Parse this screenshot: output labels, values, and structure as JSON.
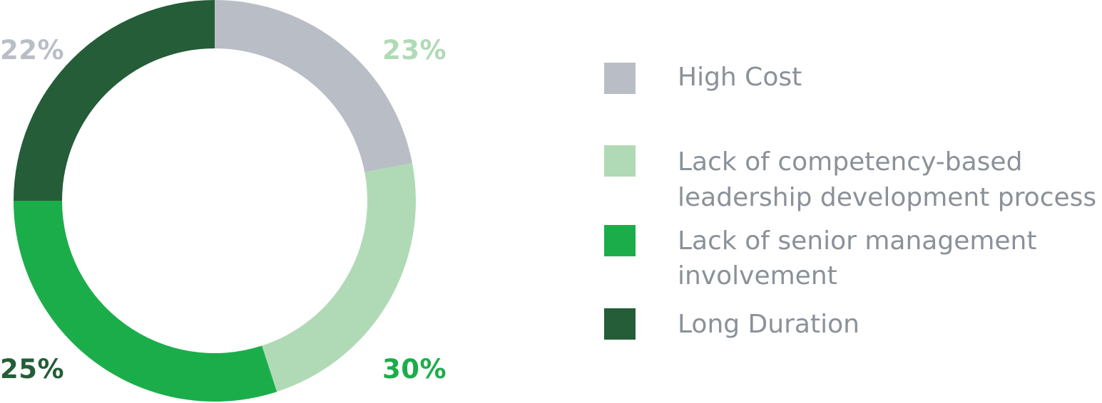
{
  "chart_data": {
    "type": "pie",
    "variant": "donut",
    "start_angle_deg": 0,
    "direction": "clockwise",
    "slices": [
      {
        "label": "High Cost",
        "legend_lines": [
          "High Cost"
        ],
        "value": 22,
        "value_label": "22%",
        "color": "#b9bec6"
      },
      {
        "label": "Lack of competency-based leadership development process",
        "legend_lines": [
          "Lack of competency-based",
          "leadership development process"
        ],
        "value": 23,
        "value_label": "23%",
        "color": "#b0dab5"
      },
      {
        "label": "Lack of senior management involvement",
        "legend_lines": [
          "Lack of senior management",
          "involvement"
        ],
        "value": 30,
        "value_label": "30%",
        "color": "#1cad4b"
      },
      {
        "label": "Long Duration",
        "legend_lines": [
          "Long Duration"
        ],
        "value": 25,
        "value_label": "25%",
        "color": "#245d38"
      }
    ],
    "legend_position": "right",
    "legend_text_color": "#8a9199"
  }
}
